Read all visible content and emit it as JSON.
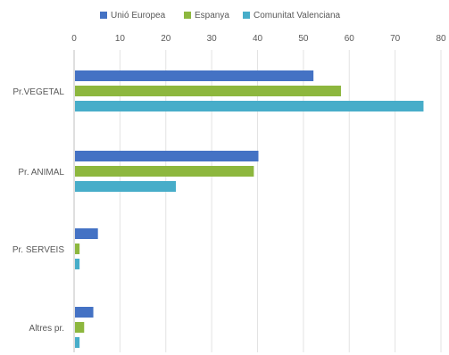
{
  "chart_data": {
    "type": "bar",
    "orientation": "horizontal",
    "categories": [
      "Pr.VEGETAL",
      "Pr. ANIMAL",
      "Pr. SERVEIS",
      "Altres pr."
    ],
    "series": [
      {
        "name": "Unió Europea",
        "color": "#4472C4",
        "values": [
          52,
          40,
          5,
          4
        ]
      },
      {
        "name": "Espanya",
        "color": "#8DB73E",
        "values": [
          58,
          39,
          1,
          2
        ]
      },
      {
        "name": "Comunitat Valenciana",
        "color": "#47ADC9",
        "values": [
          76,
          22,
          1,
          1
        ]
      }
    ],
    "xlim": [
      0,
      80
    ],
    "xticks": [
      0,
      10,
      20,
      30,
      40,
      50,
      60,
      70,
      80
    ],
    "title": "",
    "xlabel": "",
    "ylabel": "",
    "grid": "vertical",
    "legend_position": "top",
    "axis_position": "top"
  }
}
